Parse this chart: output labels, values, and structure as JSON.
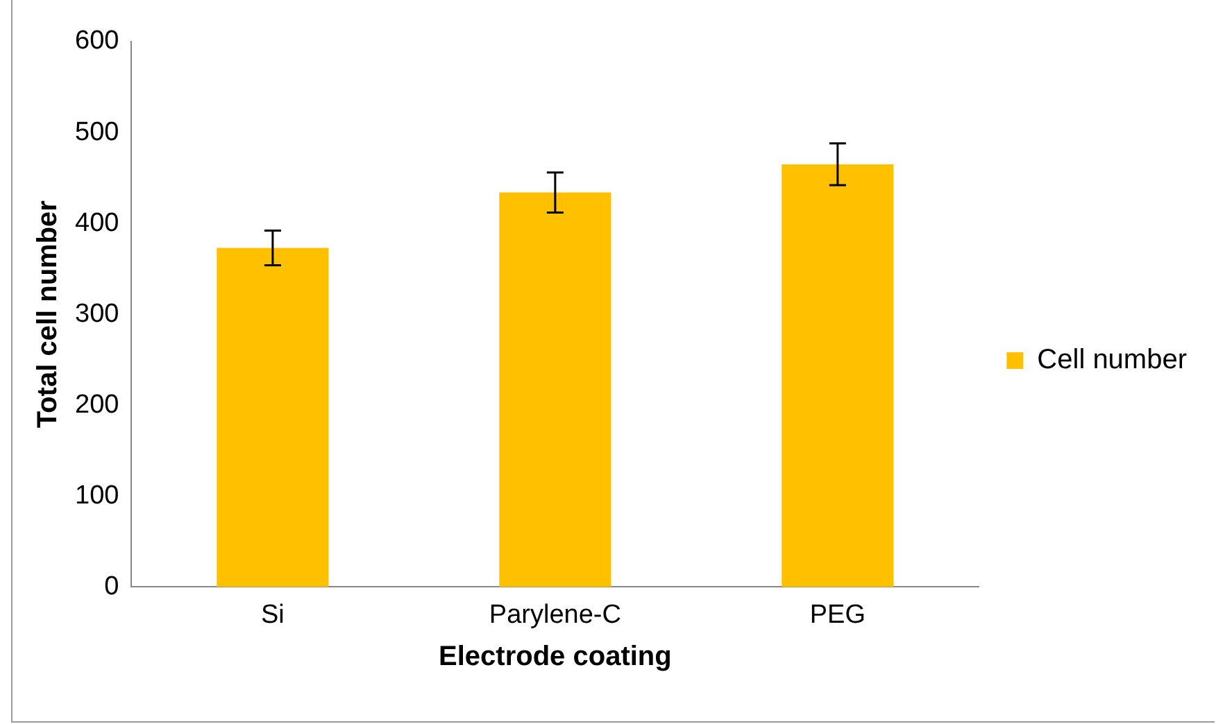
{
  "chart_data": {
    "type": "bar",
    "xlabel": "Electrode coating",
    "ylabel": "Total cell number",
    "categories": [
      "Si",
      "Parylene-C",
      "PEG"
    ],
    "series": [
      {
        "name": "Cell number",
        "color": "#ffc000",
        "values": [
          373,
          434,
          465
        ],
        "errors": [
          19,
          22,
          23
        ]
      }
    ],
    "ylim": [
      0,
      600
    ],
    "yticks": [
      0,
      100,
      200,
      300,
      400,
      500,
      600
    ],
    "grid": false,
    "legend": "right"
  }
}
